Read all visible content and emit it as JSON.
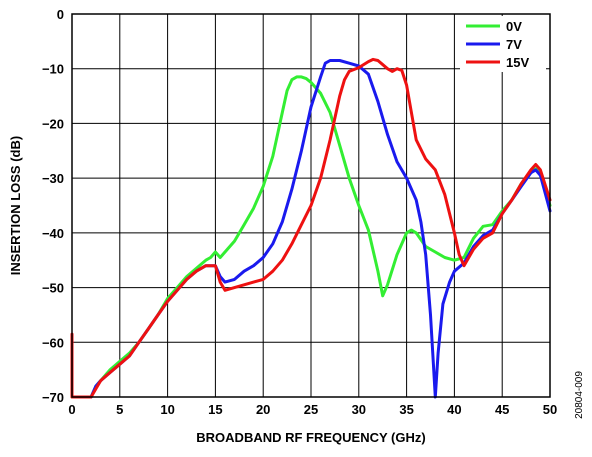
{
  "chart_data": {
    "type": "line",
    "title": "",
    "xlabel": "BROADBAND RF FREQUENCY (GHz)",
    "ylabel": "INSERTION LOSS (dB)",
    "xlim": [
      0,
      50
    ],
    "ylim": [
      -70,
      0
    ],
    "x_ticks": [
      "0",
      "5",
      "10",
      "15",
      "20",
      "25",
      "30",
      "35",
      "40",
      "45",
      "50"
    ],
    "y_ticks": [
      "0",
      "−10",
      "−20",
      "−30",
      "−40",
      "−50",
      "−60",
      "−70"
    ],
    "grid": true,
    "legend_position": "top-right",
    "figure_id": "20804-009",
    "series": [
      {
        "name": "0V",
        "color": "#33ee33",
        "points": [
          [
            0,
            -70
          ],
          [
            0,
            -60
          ],
          [
            0,
            -70
          ],
          [
            2,
            -70
          ],
          [
            2.5,
            -68
          ],
          [
            3,
            -67
          ],
          [
            4,
            -65
          ],
          [
            5,
            -63.5
          ],
          [
            6,
            -62
          ],
          [
            7,
            -60
          ],
          [
            8,
            -57.5
          ],
          [
            9,
            -55
          ],
          [
            10,
            -52
          ],
          [
            11,
            -50
          ],
          [
            12,
            -48
          ],
          [
            13,
            -46.5
          ],
          [
            14,
            -45
          ],
          [
            14.5,
            -44.5
          ],
          [
            15,
            -43.5
          ],
          [
            15.5,
            -44.5
          ],
          [
            16,
            -43.5
          ],
          [
            17,
            -41.5
          ],
          [
            18,
            -38.5
          ],
          [
            19,
            -35.5
          ],
          [
            20,
            -31.5
          ],
          [
            21,
            -26
          ],
          [
            22,
            -18
          ],
          [
            22.5,
            -14
          ],
          [
            23,
            -12
          ],
          [
            23.5,
            -11.5
          ],
          [
            24,
            -11.5
          ],
          [
            24.5,
            -11.8
          ],
          [
            25,
            -12.5
          ],
          [
            26,
            -14.5
          ],
          [
            27,
            -18
          ],
          [
            28,
            -24
          ],
          [
            29,
            -30
          ],
          [
            30,
            -35
          ],
          [
            31,
            -39.5
          ],
          [
            32,
            -47
          ],
          [
            32.5,
            -51.5
          ],
          [
            33,
            -49.5
          ],
          [
            34,
            -44
          ],
          [
            35,
            -40
          ],
          [
            35.5,
            -39.5
          ],
          [
            36,
            -40
          ],
          [
            37,
            -42.5
          ],
          [
            38,
            -43.5
          ],
          [
            39,
            -44.5
          ],
          [
            40,
            -45
          ],
          [
            41,
            -44.5
          ],
          [
            42,
            -41
          ],
          [
            43,
            -38.8
          ],
          [
            44,
            -38.5
          ],
          [
            45,
            -36
          ],
          [
            46,
            -34
          ],
          [
            47,
            -31
          ],
          [
            48,
            -29
          ],
          [
            48.5,
            -28.3
          ],
          [
            49,
            -29
          ],
          [
            50,
            -35
          ]
        ]
      },
      {
        "name": "7V",
        "color": "#1a1aee",
        "points": [
          [
            2,
            -70
          ],
          [
            2.5,
            -68
          ],
          [
            3,
            -67
          ],
          [
            4,
            -65.5
          ],
          [
            5,
            -64
          ],
          [
            6,
            -62.5
          ],
          [
            7,
            -60
          ],
          [
            8,
            -57.5
          ],
          [
            9,
            -55
          ],
          [
            10,
            -52.5
          ],
          [
            11,
            -50.5
          ],
          [
            12,
            -48.5
          ],
          [
            13,
            -47
          ],
          [
            14,
            -46
          ],
          [
            15,
            -46
          ],
          [
            15.5,
            -48
          ],
          [
            16,
            -49
          ],
          [
            17,
            -48.5
          ],
          [
            18,
            -47
          ],
          [
            19,
            -46
          ],
          [
            20,
            -44.5
          ],
          [
            21,
            -42
          ],
          [
            22,
            -38
          ],
          [
            23,
            -32
          ],
          [
            24,
            -25
          ],
          [
            25,
            -17
          ],
          [
            26,
            -11.5
          ],
          [
            26.5,
            -9
          ],
          [
            27,
            -8.5
          ],
          [
            28,
            -8.5
          ],
          [
            29,
            -9
          ],
          [
            30,
            -9.5
          ],
          [
            31,
            -11
          ],
          [
            32,
            -16
          ],
          [
            33,
            -22
          ],
          [
            34,
            -27
          ],
          [
            35,
            -30
          ],
          [
            36,
            -34
          ],
          [
            36.5,
            -38
          ],
          [
            37,
            -44
          ],
          [
            37.5,
            -55
          ],
          [
            37.8,
            -64
          ],
          [
            38,
            -70
          ],
          [
            38.3,
            -62
          ],
          [
            38.8,
            -53
          ],
          [
            39.5,
            -49
          ],
          [
            40,
            -47
          ],
          [
            41,
            -45.5
          ],
          [
            42,
            -42.5
          ],
          [
            43,
            -40.5
          ],
          [
            44,
            -39.5
          ],
          [
            45,
            -36.5
          ],
          [
            46,
            -34
          ],
          [
            47,
            -31.5
          ],
          [
            48,
            -29
          ],
          [
            48.5,
            -28.5
          ],
          [
            49,
            -29.5
          ],
          [
            50,
            -36
          ]
        ]
      },
      {
        "name": "15V",
        "color": "#ee1111",
        "points": [
          [
            0,
            -70
          ],
          [
            0,
            -58.5
          ],
          [
            0,
            -70
          ],
          [
            2,
            -70
          ],
          [
            2.5,
            -68.5
          ],
          [
            3,
            -67
          ],
          [
            4,
            -65.5
          ],
          [
            5,
            -64
          ],
          [
            6,
            -62.5
          ],
          [
            7,
            -60
          ],
          [
            8,
            -57.5
          ],
          [
            9,
            -55
          ],
          [
            10,
            -52.5
          ],
          [
            11,
            -50.5
          ],
          [
            12,
            -48.5
          ],
          [
            13,
            -47
          ],
          [
            14,
            -46
          ],
          [
            15,
            -46
          ],
          [
            15.5,
            -49
          ],
          [
            16,
            -50.5
          ],
          [
            17,
            -50
          ],
          [
            18,
            -49.5
          ],
          [
            19,
            -49
          ],
          [
            20,
            -48.5
          ],
          [
            21,
            -47
          ],
          [
            22,
            -45
          ],
          [
            23,
            -42
          ],
          [
            24,
            -38.5
          ],
          [
            25,
            -35
          ],
          [
            26,
            -30
          ],
          [
            27,
            -23
          ],
          [
            28,
            -15
          ],
          [
            28.5,
            -12
          ],
          [
            29,
            -10.5
          ],
          [
            30,
            -9.8
          ],
          [
            31,
            -8.7
          ],
          [
            31.5,
            -8.3
          ],
          [
            32,
            -8.5
          ],
          [
            33,
            -10
          ],
          [
            33.5,
            -10.5
          ],
          [
            34,
            -10
          ],
          [
            34.5,
            -10.3
          ],
          [
            35,
            -13
          ],
          [
            35.5,
            -18
          ],
          [
            36,
            -23
          ],
          [
            37,
            -26.5
          ],
          [
            38,
            -28.5
          ],
          [
            39,
            -33
          ],
          [
            40,
            -40
          ],
          [
            40.5,
            -44
          ],
          [
            41,
            -46
          ],
          [
            42,
            -43
          ],
          [
            43,
            -41
          ],
          [
            44,
            -40
          ],
          [
            45,
            -36.5
          ],
          [
            46,
            -34
          ],
          [
            47,
            -31
          ],
          [
            48,
            -28.5
          ],
          [
            48.5,
            -27.5
          ],
          [
            49,
            -28.5
          ],
          [
            50,
            -34
          ]
        ]
      }
    ]
  }
}
